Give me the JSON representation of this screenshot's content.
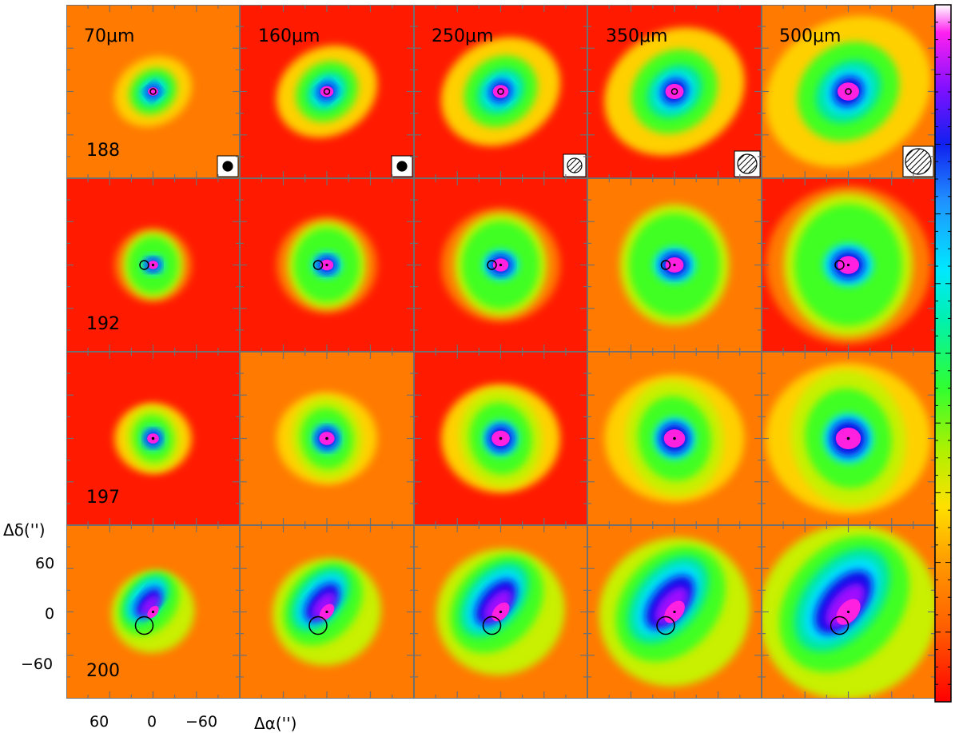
{
  "wavelengths": [
    "70μm",
    "160μm",
    "250μm",
    "350μm",
    "500μm"
  ],
  "sources": [
    "188",
    "192",
    "197",
    "200"
  ],
  "axis": {
    "ylabel": "Δδ('')",
    "xlabel": "Δα('')",
    "yticks": [
      "60",
      "0",
      "−60"
    ],
    "xticks": [
      "60",
      "0",
      "−60"
    ]
  },
  "colors": {
    "colormap": [
      "#ff1a00",
      "#ff7a00",
      "#ffd000",
      "#c8f000",
      "#40ff20",
      "#00e8a0",
      "#00e0ff",
      "#2070ff",
      "#1010e8",
      "#a010ff",
      "#ff20e0"
    ],
    "frame": "#707070",
    "marker": "#000000"
  },
  "beam_icons": [
    "beam-circle-70",
    "beam-circle-160",
    "beam-circle-250",
    "beam-circle-350",
    "beam-circle-500"
  ]
}
